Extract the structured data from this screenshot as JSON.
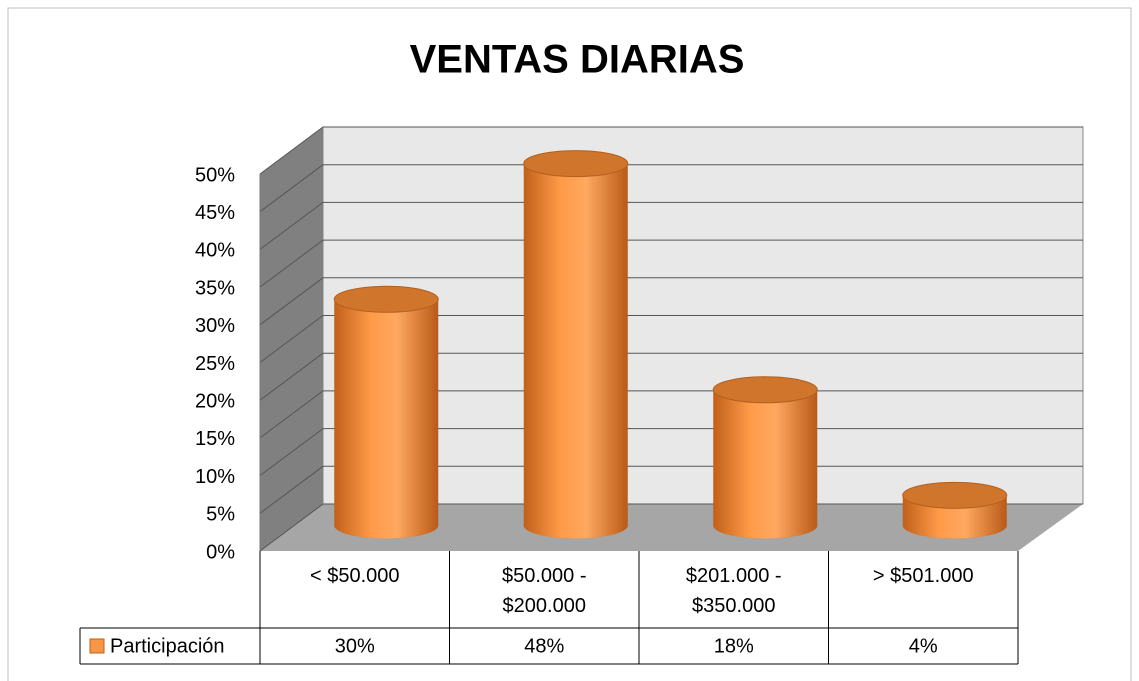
{
  "chart_data": {
    "type": "bar3d-cylinder",
    "title": "VENTAS DIARIAS",
    "categories": [
      "< $50.000",
      "$50.000 - $200.000",
      "$201.000 - $350.000",
      "> $501.000"
    ],
    "series": [
      {
        "name": "Participación",
        "color": "#f79646",
        "values": [
          30,
          48,
          18,
          4
        ],
        "value_labels": [
          "30%",
          "48%",
          "18%",
          "4%"
        ]
      }
    ],
    "ylim": [
      0,
      50
    ],
    "yticks": [
      {
        "value": 0,
        "label": "0%"
      },
      {
        "value": 5,
        "label": "5%"
      },
      {
        "value": 10,
        "label": "10%"
      },
      {
        "value": 15,
        "label": "15%"
      },
      {
        "value": 20,
        "label": "20%"
      },
      {
        "value": 25,
        "label": "25%"
      },
      {
        "value": 30,
        "label": "30%"
      },
      {
        "value": 35,
        "label": "35%"
      },
      {
        "value": 40,
        "label": "40%"
      },
      {
        "value": 45,
        "label": "45%"
      },
      {
        "value": 50,
        "label": "50%"
      }
    ],
    "grid": true,
    "data_table": true
  }
}
